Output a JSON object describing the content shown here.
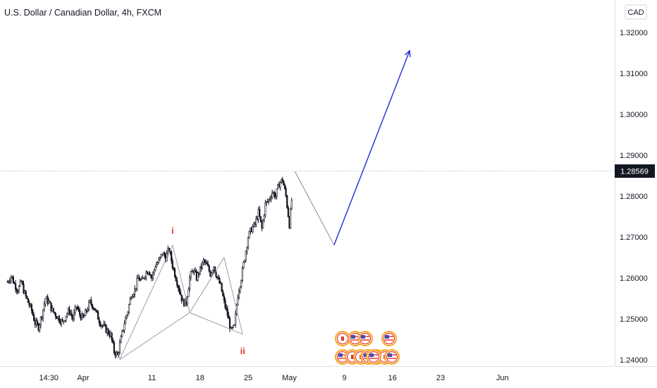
{
  "title": "U.S. Dollar / Canadian Dollar, 4h, FXCM",
  "currency_label": "CAD",
  "colors": {
    "candle_up": "#131722",
    "candle_down": "#131722",
    "pattern_lines": "#9e9e9e",
    "projection_gray": "#9e9e9e",
    "projection_blue": "#1e2bd8",
    "wave_label": "#e53935",
    "price_tag_bg": "#131722",
    "last_price_line": "#b2b5be"
  },
  "wave_labels": [
    "i",
    "ii"
  ],
  "chart_data": {
    "type": "candlestick",
    "title": "U.S. Dollar / Canadian Dollar, 4h, FXCM",
    "ylim": [
      1.2375,
      1.3275
    ],
    "y_ticks": [
      "1.32000",
      "1.31000",
      "1.30000",
      "1.29000",
      "1.28000",
      "1.27000",
      "1.26000",
      "1.25000",
      "1.24000"
    ],
    "y_tick_values": [
      1.32,
      1.31,
      1.3,
      1.29,
      1.28,
      1.27,
      1.26,
      1.25,
      1.24
    ],
    "x_ticks": [
      "14:30",
      "Apr",
      "11",
      "18",
      "25",
      "May",
      "9",
      "16",
      "23",
      "Jun"
    ],
    "x_tick_days": [
      -5,
      0,
      10,
      17,
      24,
      30,
      38,
      45,
      52,
      61
    ],
    "last_price": "1.28569",
    "last_price_value": 1.28569,
    "grid": false,
    "close_path": [
      [
        -11,
        1.259
      ],
      [
        -10.5,
        1.2605
      ],
      [
        -10,
        1.2585
      ],
      [
        -9.5,
        1.257
      ],
      [
        -9,
        1.259
      ],
      [
        -8.5,
        1.256
      ],
      [
        -8,
        1.254
      ],
      [
        -7.5,
        1.252
      ],
      [
        -7,
        1.249
      ],
      [
        -6.5,
        1.248
      ],
      [
        -6,
        1.251
      ],
      [
        -5.5,
        1.255
      ],
      [
        -5,
        1.254
      ],
      [
        -4.5,
        1.252
      ],
      [
        -4,
        1.251
      ],
      [
        -3.5,
        1.25
      ],
      [
        -3,
        1.249
      ],
      [
        -2.5,
        1.251
      ],
      [
        -2,
        1.252
      ],
      [
        -1.5,
        1.25
      ],
      [
        -1,
        1.253
      ],
      [
        -0.5,
        1.251
      ],
      [
        0,
        1.25
      ],
      [
        0.5,
        1.252
      ],
      [
        1,
        1.254
      ],
      [
        1.5,
        1.253
      ],
      [
        2,
        1.251
      ],
      [
        2.5,
        1.249
      ],
      [
        3,
        1.248
      ],
      [
        3.5,
        1.247
      ],
      [
        4,
        1.246
      ],
      [
        4.5,
        1.242
      ],
      [
        5,
        1.241
      ],
      [
        5.5,
        1.245
      ],
      [
        6,
        1.249
      ],
      [
        6.5,
        1.252
      ],
      [
        7,
        1.256
      ],
      [
        7.5,
        1.257
      ],
      [
        8,
        1.26
      ],
      [
        8.5,
        1.259
      ],
      [
        9,
        1.261
      ],
      [
        9.5,
        1.262
      ],
      [
        10,
        1.26
      ],
      [
        10.5,
        1.263
      ],
      [
        11,
        1.264
      ],
      [
        11.5,
        1.266
      ],
      [
        12,
        1.265
      ],
      [
        12.5,
        1.267
      ],
      [
        13,
        1.263
      ],
      [
        13.5,
        1.26
      ],
      [
        14,
        1.257
      ],
      [
        14.5,
        1.254
      ],
      [
        15,
        1.254
      ],
      [
        15.5,
        1.26
      ],
      [
        16,
        1.262
      ],
      [
        16.5,
        1.26
      ],
      [
        17,
        1.262
      ],
      [
        17.5,
        1.264
      ],
      [
        18,
        1.263
      ],
      [
        18.5,
        1.261
      ],
      [
        19,
        1.263
      ],
      [
        19.5,
        1.26
      ],
      [
        20,
        1.258
      ],
      [
        20.5,
        1.254
      ],
      [
        21,
        1.251
      ],
      [
        21.5,
        1.247
      ],
      [
        22,
        1.248
      ],
      [
        22.5,
        1.256
      ],
      [
        23,
        1.26
      ],
      [
        23.5,
        1.265
      ],
      [
        24,
        1.27
      ],
      [
        24.5,
        1.272
      ],
      [
        25,
        1.273
      ],
      [
        25.5,
        1.276
      ],
      [
        26,
        1.272
      ],
      [
        26.5,
        1.278
      ],
      [
        27,
        1.279
      ],
      [
        27.5,
        1.281
      ],
      [
        28,
        1.28
      ],
      [
        28.5,
        1.283
      ],
      [
        29,
        1.284
      ],
      [
        29.5,
        1.28
      ],
      [
        30,
        1.273
      ],
      [
        30.5,
        1.282
      ]
    ],
    "pattern_lines": [
      [
        [
          5.3,
          1.24
        ],
        [
          13,
          1.268
        ]
      ],
      [
        [
          5.3,
          1.24
        ],
        [
          15.5,
          1.2515
        ]
      ],
      [
        [
          13,
          1.268
        ],
        [
          15.5,
          1.2515
        ]
      ],
      [
        [
          15.5,
          1.2515
        ],
        [
          20.5,
          1.265
        ]
      ],
      [
        [
          20.5,
          1.265
        ],
        [
          23.2,
          1.2462
        ]
      ],
      [
        [
          15.5,
          1.2515
        ],
        [
          23.2,
          1.2462
        ]
      ]
    ],
    "projection": [
      [
        30.8,
        1.286
      ],
      [
        36.5,
        1.268
      ],
      [
        47.5,
        1.3155
      ]
    ],
    "wave_points": [
      {
        "label": "i",
        "x": 13,
        "y": 1.268
      },
      {
        "label": "ii",
        "x": 23.2,
        "y": 1.2462
      }
    ]
  }
}
